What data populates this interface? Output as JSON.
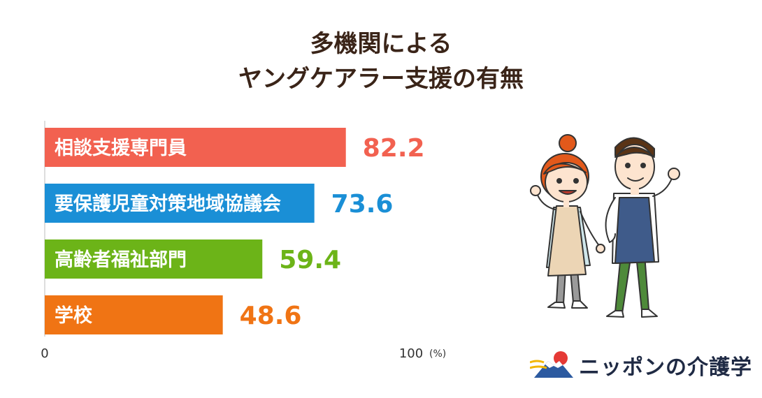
{
  "title": {
    "line1": "多機関による",
    "line2": "ヤングケアラー支援の有無"
  },
  "chart_data": {
    "type": "bar",
    "orientation": "horizontal",
    "title": "多機関による ヤングケアラー支援の有無",
    "categories": [
      "相談支援専門員",
      "要保護児童対策地域協議会",
      "高齢者福祉部門",
      "学校"
    ],
    "values": [
      82.2,
      73.6,
      59.4,
      48.6
    ],
    "value_labels": [
      "82.2",
      "73.6",
      "59.4",
      "48.6"
    ],
    "colors": [
      "#f26150",
      "#1a8fd6",
      "#6cb418",
      "#f07414"
    ],
    "xlim": [
      0,
      100
    ],
    "x_ticks": [
      "0",
      "100"
    ],
    "unit": "(%)",
    "grid": false,
    "legend": "none"
  },
  "logo": {
    "text": "ニッポンの介護学"
  }
}
